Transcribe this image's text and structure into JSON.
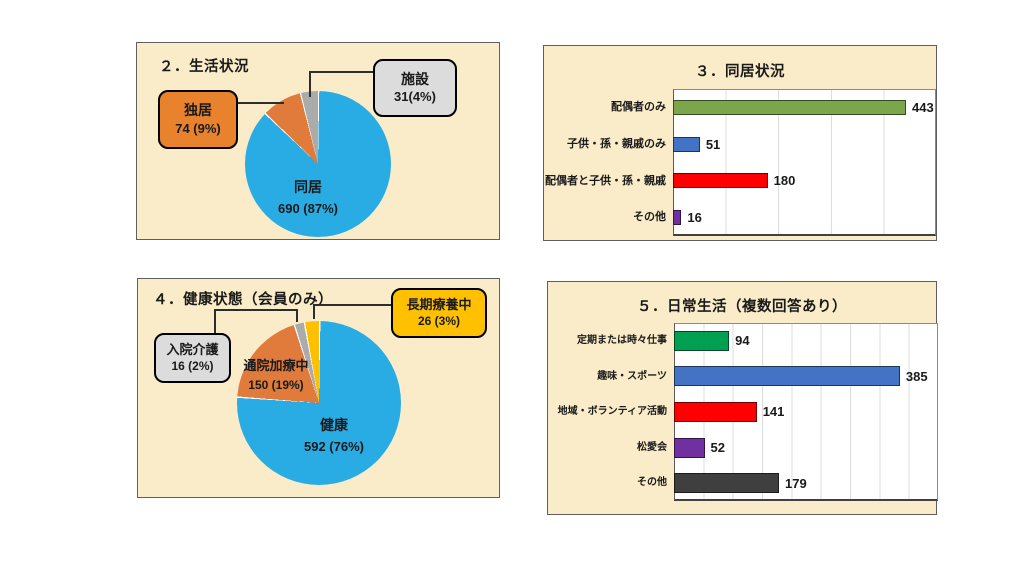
{
  "page": {
    "background": "#ffffff",
    "panel_background": "#FAECC8",
    "panel_border": "#5f5f5f",
    "leader_line_color": "#2d2d2d"
  },
  "chart_data": [
    {
      "id": "living-situation",
      "type": "pie",
      "title": "２．生活状況",
      "legend_position": "none",
      "slices": [
        {
          "label": "同居",
          "value": 690,
          "pct": 87,
          "display": "690 (87%)",
          "color": "#29ABE3",
          "label_placement": "inside"
        },
        {
          "label": "独居",
          "value": 74,
          "pct": 9,
          "display": "74 (9%)",
          "color": "#E07B3C",
          "label_placement": "callout",
          "callout_color": "#E8822D"
        },
        {
          "label": "施設",
          "value": 31,
          "pct": 4,
          "display": "31(4%)",
          "color": "#ABABAB",
          "label_placement": "callout",
          "callout_color": "#DCDCDC"
        }
      ]
    },
    {
      "id": "cohabitation-status",
      "type": "bar",
      "orientation": "horizontal",
      "title": "３．同居状況",
      "categories": [
        "配偶者のみ",
        "子供・孫・親戚のみ",
        "配偶者と子供・孫・親戚",
        "その他"
      ],
      "values": [
        443,
        51,
        180,
        16
      ],
      "colors": [
        "#7CA64B",
        "#4472C4",
        "#FE0000",
        "#7030A0"
      ],
      "xlim": [
        0,
        500
      ],
      "grid_step": 100,
      "grid": true,
      "value_labels": true
    },
    {
      "id": "health-status",
      "type": "pie",
      "title": "４．健康状態（会員のみ）",
      "legend_position": "none",
      "slices": [
        {
          "label": "健康",
          "value": 592,
          "pct": 76,
          "display": "592 (76%)",
          "color": "#29ABE3",
          "label_placement": "inside"
        },
        {
          "label": "通院加療中",
          "value": 150,
          "pct": 19,
          "display": "150 (19%)",
          "color": "#E07B3C",
          "label_placement": "inside"
        },
        {
          "label": "入院介護",
          "value": 16,
          "pct": 2,
          "display": "16 (2%)",
          "color": "#ABABAB",
          "label_placement": "callout",
          "callout_color": "#DCDCDC"
        },
        {
          "label": "長期療養中",
          "value": 26,
          "pct": 3,
          "display": "26 (3%)",
          "color": "#FFC000",
          "label_placement": "callout",
          "callout_color": "#FFC000"
        }
      ]
    },
    {
      "id": "daily-life",
      "type": "bar",
      "orientation": "horizontal",
      "title": "５．日常生活（複数回答あり）",
      "categories": [
        "定期または時々仕事",
        "趣味・スポーツ",
        "地域・ボランティア活動",
        "松愛会",
        "その他"
      ],
      "values": [
        94,
        385,
        141,
        52,
        179
      ],
      "colors": [
        "#00A050",
        "#4472C4",
        "#FE0000",
        "#7030A0",
        "#3F3F3F"
      ],
      "xlim": [
        0,
        450
      ],
      "grid_step": 50,
      "grid": true,
      "value_labels": true
    }
  ]
}
